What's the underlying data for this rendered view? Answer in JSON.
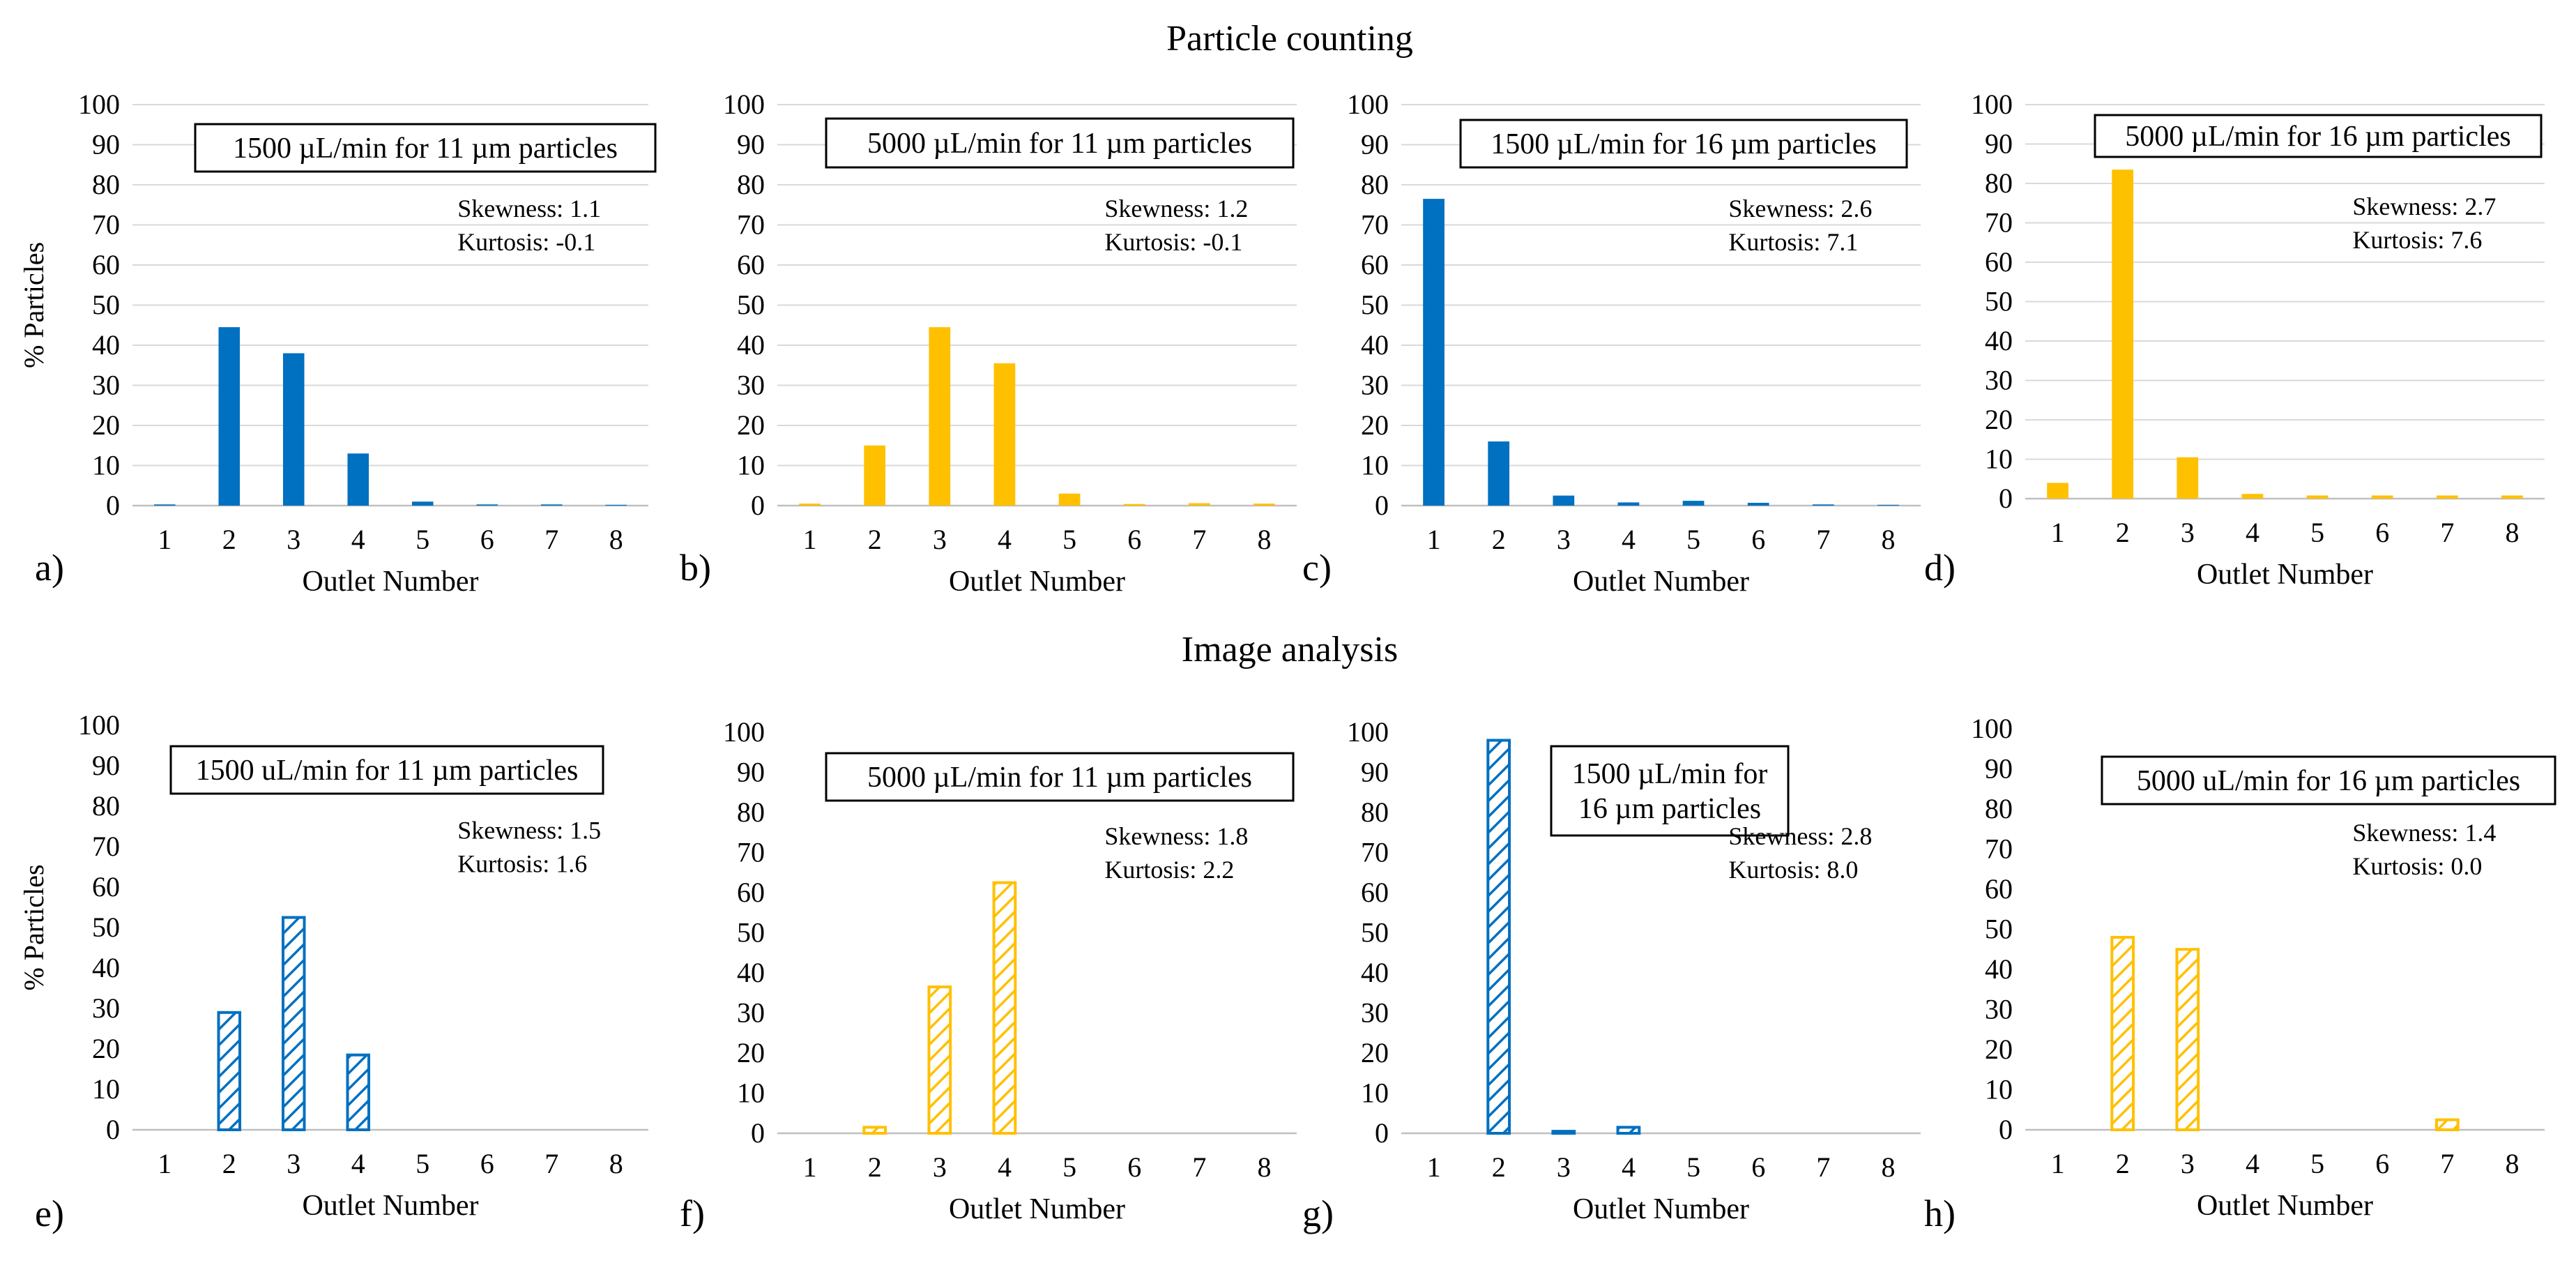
{
  "sections": {
    "top": "Particle counting",
    "bottom": "Image analysis"
  },
  "colors": {
    "blue": "#0070c0",
    "yellow": "#ffc000"
  },
  "chart_data": [
    {
      "type": "bar",
      "panel": "a)",
      "fill": "solid",
      "color": "#0070c0",
      "title_lines": [
        "1500 µL/min  for 11 µm particles"
      ],
      "categories": [
        "1",
        "2",
        "3",
        "4",
        "5",
        "6",
        "7",
        "8"
      ],
      "values": [
        0.3,
        44.5,
        38,
        13,
        1,
        0.3,
        0.3,
        0.2
      ],
      "xlabel": "Outlet Number",
      "ylabel": "% Particles",
      "ylim": [
        0,
        100
      ],
      "yticks": [
        0,
        10,
        20,
        30,
        40,
        50,
        60,
        70,
        80,
        90,
        100
      ],
      "skewness": "Skewness: 1.1",
      "kurtosis": "Kurtosis: -0.1",
      "grid": true
    },
    {
      "type": "bar",
      "panel": "b)",
      "fill": "solid",
      "color": "#ffc000",
      "title_lines": [
        "5000 µL/min for 11 µm particles"
      ],
      "categories": [
        "1",
        "2",
        "3",
        "4",
        "5",
        "6",
        "7",
        "8"
      ],
      "values": [
        0.5,
        15,
        44.5,
        35.5,
        3,
        0.4,
        0.6,
        0.5
      ],
      "xlabel": "Outlet Number",
      "ylabel": "",
      "ylim": [
        0,
        100
      ],
      "yticks": [
        0,
        10,
        20,
        30,
        40,
        50,
        60,
        70,
        80,
        90,
        100
      ],
      "skewness": "Skewness: 1.2",
      "kurtosis": "Kurtosis: -0.1",
      "grid": true
    },
    {
      "type": "bar",
      "panel": "c)",
      "fill": "solid",
      "color": "#0070c0",
      "title_lines": [
        "1500 µL/min  for 16 µm  particles"
      ],
      "categories": [
        "1",
        "2",
        "3",
        "4",
        "5",
        "6",
        "7",
        "8"
      ],
      "values": [
        76.5,
        16,
        2.5,
        0.8,
        1.2,
        0.7,
        0.3,
        0.2
      ],
      "xlabel": "Outlet Number",
      "ylabel": "",
      "ylim": [
        0,
        100
      ],
      "yticks": [
        0,
        10,
        20,
        30,
        40,
        50,
        60,
        70,
        80,
        90,
        100
      ],
      "skewness": "Skewness: 2.6",
      "kurtosis": "Kurtosis: 7.1",
      "grid": true
    },
    {
      "type": "bar",
      "panel": "d)",
      "fill": "solid",
      "color": "#ffc000",
      "title_lines": [
        "5000 µL/min  for 16 µm particles"
      ],
      "categories": [
        "1",
        "2",
        "3",
        "4",
        "5",
        "6",
        "7",
        "8"
      ],
      "values": [
        4,
        83.5,
        10.5,
        1.2,
        0.8,
        0.8,
        0.8,
        0.8
      ],
      "xlabel": "Outlet Number",
      "ylabel": "",
      "ylim": [
        0,
        100
      ],
      "yticks": [
        0,
        10,
        20,
        30,
        40,
        50,
        60,
        70,
        80,
        90,
        100
      ],
      "skewness": "Skewness: 2.7",
      "kurtosis": "Kurtosis: 7.6",
      "grid": true
    },
    {
      "type": "bar",
      "panel": "e)",
      "fill": "hatched",
      "color": "#0070c0",
      "title_lines": [
        "1500 uL/min  for 11 µm particles"
      ],
      "categories": [
        "1",
        "2",
        "3",
        "4",
        "5",
        "6",
        "7",
        "8"
      ],
      "values": [
        0,
        29,
        52.5,
        18.5,
        0,
        0,
        0,
        0
      ],
      "xlabel": "Outlet Number",
      "ylabel": "% Particles",
      "ylim": [
        0,
        100
      ],
      "yticks": [
        0,
        10,
        20,
        30,
        40,
        50,
        60,
        70,
        80,
        90,
        100
      ],
      "skewness": "Skewness: 1.5",
      "kurtosis": "Kurtosis: 1.6",
      "grid": false
    },
    {
      "type": "bar",
      "panel": "f)",
      "fill": "hatched",
      "color": "#ffc000",
      "title_lines": [
        "5000 µL/min  for 11 µm  particles"
      ],
      "categories": [
        "1",
        "2",
        "3",
        "4",
        "5",
        "6",
        "7",
        "8"
      ],
      "values": [
        0,
        1.5,
        36.5,
        62.5,
        0,
        0,
        0,
        0
      ],
      "xlabel": "Outlet Number",
      "ylabel": "",
      "ylim": [
        0,
        100
      ],
      "yticks": [
        0,
        10,
        20,
        30,
        40,
        50,
        60,
        70,
        80,
        90,
        100
      ],
      "skewness": "Skewness: 1.8",
      "kurtosis": "Kurtosis: 2.2",
      "grid": false
    },
    {
      "type": "bar",
      "panel": "g)",
      "fill": "hatched",
      "color": "#0070c0",
      "title_lines": [
        "1500 µL/min  for",
        "16 µm  particles"
      ],
      "categories": [
        "1",
        "2",
        "3",
        "4",
        "5",
        "6",
        "7",
        "8"
      ],
      "values": [
        0,
        98,
        0.5,
        1.5,
        0,
        0,
        0,
        0
      ],
      "xlabel": "Outlet Number",
      "ylabel": "",
      "ylim": [
        0,
        100
      ],
      "yticks": [
        0,
        10,
        20,
        30,
        40,
        50,
        60,
        70,
        80,
        90,
        100
      ],
      "skewness": "Skewness: 2.8",
      "kurtosis": "Kurtosis: 8.0",
      "grid": false
    },
    {
      "type": "bar",
      "panel": "h)",
      "fill": "hatched",
      "color": "#ffc000",
      "title_lines": [
        "5000 uL/min  for 16 µm  particles"
      ],
      "categories": [
        "1",
        "2",
        "3",
        "4",
        "5",
        "6",
        "7",
        "8"
      ],
      "values": [
        0,
        48,
        45,
        0,
        0,
        0,
        2.5,
        0
      ],
      "xlabel": "Outlet Number",
      "ylabel": "",
      "ylim": [
        0,
        100
      ],
      "yticks": [
        0,
        10,
        20,
        30,
        40,
        50,
        60,
        70,
        80,
        90,
        100
      ],
      "skewness": "Skewness: 1.4",
      "kurtosis": "Kurtosis: 0.0",
      "grid": false
    }
  ]
}
